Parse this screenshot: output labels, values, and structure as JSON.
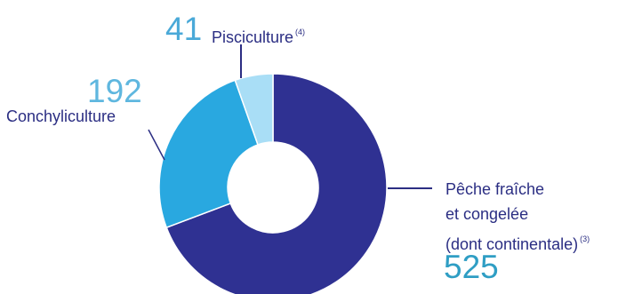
{
  "chart_data": {
    "type": "pie",
    "donut": true,
    "categories": [
      "Pêche fraîche et congelée (dont continentale)",
      "Conchyliculture",
      "Pisciculture"
    ],
    "values": [
      525,
      192,
      41
    ],
    "colors": [
      "#2f3192",
      "#29a8e0",
      "#a9def6"
    ],
    "labels": {
      "peche": {
        "line1": "Pêche fraîche",
        "line2": "et congelée",
        "line3": "(dont continentale)",
        "note": "(3)",
        "value": "525"
      },
      "conchy": {
        "name": "Conchyliculture",
        "value": "192"
      },
      "pisci": {
        "name": "Pisciculture",
        "note": "(4)",
        "value": "41"
      }
    },
    "value_colors": {
      "peche": "#2f9ec4",
      "conchy": "#5fb7df",
      "pisci": "#4aa9d8"
    }
  }
}
